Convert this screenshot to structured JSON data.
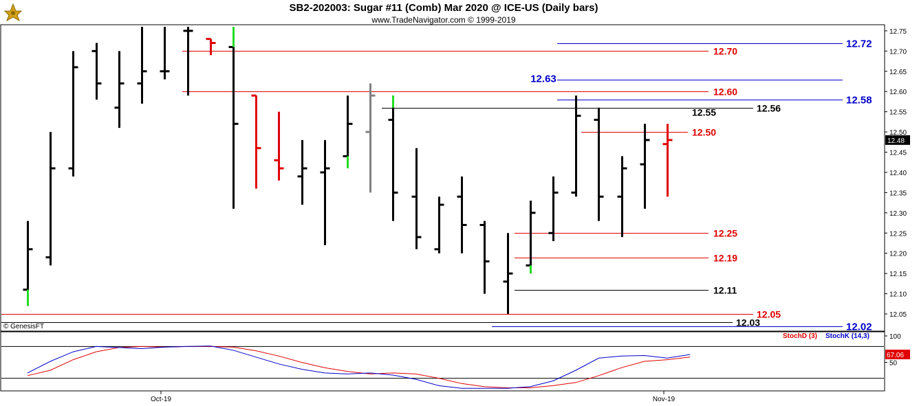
{
  "header": {
    "title": "SB2-202003:  Sugar #11 (Comb) Mar 2020 @ ICE-US  (Daily bars)",
    "subtitle": "www.TradeNavigator.com © 1999-2019"
  },
  "copyright_label": "© GenesisFT",
  "chart_data": [
    {
      "type": "ohlc",
      "ylim": [
        12.02,
        12.76
      ],
      "y_ticks": [
        "12.75",
        "12.70",
        "12.65",
        "12.60",
        "12.55",
        "12.50",
        "12.45",
        "12.40",
        "12.35",
        "12.30",
        "12.25",
        "12.20",
        "12.15",
        "12.10",
        "12.05"
      ],
      "last_price_label": "12.48",
      "x_labels": [
        "Oct-19",
        "Nov-19"
      ],
      "bars": [
        {
          "h": 12.28,
          "l": 12.07,
          "o": 12.11,
          "c": 12.21,
          "color": "#000",
          "green_tail": [
            12.07,
            12.11
          ]
        },
        {
          "h": 12.5,
          "l": 12.17,
          "o": 12.19,
          "c": 12.41,
          "color": "#000"
        },
        {
          "h": 12.7,
          "l": 12.39,
          "o": 12.41,
          "c": 12.66,
          "color": "#000"
        },
        {
          "h": 12.72,
          "l": 12.58,
          "o": 12.7,
          "c": 12.62,
          "color": "#000"
        },
        {
          "h": 12.7,
          "l": 12.51,
          "o": 12.56,
          "c": 12.62,
          "color": "#000"
        },
        {
          "h": 12.76,
          "l": 12.57,
          "o": 12.62,
          "c": 12.65,
          "color": "#000"
        },
        {
          "h": 12.76,
          "l": 12.63,
          "o": 12.65,
          "c": 12.65,
          "color": "#000"
        },
        {
          "h": 12.76,
          "l": 12.59,
          "o": 12.75,
          "c": 12.75,
          "color": "#000"
        },
        {
          "h": 12.73,
          "l": 12.69,
          "o": 12.73,
          "c": 12.72,
          "color": "#e00000"
        },
        {
          "h": 12.76,
          "l": 12.31,
          "o": 12.71,
          "c": 12.52,
          "color": "#000",
          "green_tail": [
            12.71,
            12.76
          ]
        },
        {
          "h": 12.59,
          "l": 12.36,
          "o": 12.59,
          "c": 12.46,
          "color": "#e00000"
        },
        {
          "h": 12.55,
          "l": 12.38,
          "o": 12.43,
          "c": 12.41,
          "color": "#e00000"
        },
        {
          "h": 12.48,
          "l": 12.32,
          "o": 12.39,
          "c": 12.41,
          "color": "#000"
        },
        {
          "h": 12.48,
          "l": 12.22,
          "o": 12.4,
          "c": 12.41,
          "color": "#000"
        },
        {
          "h": 12.59,
          "l": 12.41,
          "o": 12.44,
          "c": 12.52,
          "color": "#000",
          "green_tail": [
            12.41,
            12.44
          ]
        },
        {
          "h": 12.62,
          "l": 12.35,
          "o": 12.5,
          "c": 12.59,
          "color": "#808080"
        },
        {
          "h": 12.59,
          "l": 12.28,
          "o": 12.53,
          "c": 12.35,
          "color": "#000",
          "green_tail": [
            12.56,
            12.59
          ]
        },
        {
          "h": 12.46,
          "l": 12.21,
          "o": 12.34,
          "c": 12.24,
          "color": "#000"
        },
        {
          "h": 12.34,
          "l": 12.2,
          "o": 12.21,
          "c": 12.32,
          "color": "#000"
        },
        {
          "h": 12.39,
          "l": 12.2,
          "o": 12.34,
          "c": 12.27,
          "color": "#000"
        },
        {
          "h": 12.28,
          "l": 12.1,
          "o": 12.27,
          "c": 12.18,
          "color": "#000"
        },
        {
          "h": 12.25,
          "l": 12.05,
          "o": 12.13,
          "c": 12.15,
          "color": "#000"
        },
        {
          "h": 12.33,
          "l": 12.15,
          "o": 12.17,
          "c": 12.3,
          "color": "#000",
          "green_tail": [
            12.15,
            12.17
          ]
        },
        {
          "h": 12.39,
          "l": 12.23,
          "o": 12.25,
          "c": 12.35,
          "color": "#000"
        },
        {
          "h": 12.59,
          "l": 12.34,
          "o": 12.35,
          "c": 12.54,
          "color": "#000"
        },
        {
          "h": 12.56,
          "l": 12.28,
          "o": 12.53,
          "c": 12.34,
          "color": "#000"
        },
        {
          "h": 12.44,
          "l": 12.24,
          "o": 12.34,
          "c": 12.41,
          "color": "#000"
        },
        {
          "h": 12.52,
          "l": 12.31,
          "o": 12.42,
          "c": 12.48,
          "color": "#000"
        },
        {
          "h": 12.52,
          "l": 12.34,
          "o": 12.47,
          "c": 12.48,
          "color": "#e00000"
        }
      ],
      "levels": [
        {
          "value": 12.72,
          "label": "12.72",
          "color": "#0000cc",
          "label_side": "right"
        },
        {
          "value": 12.7,
          "label": "12.70",
          "color": "#e00000",
          "label_side": "inline"
        },
        {
          "value": 12.63,
          "label": "12.63",
          "color": "#0000cc",
          "label_side": "left"
        },
        {
          "value": 12.6,
          "label": "12.60",
          "color": "#e00000",
          "label_side": "inline"
        },
        {
          "value": 12.58,
          "label": "12.58",
          "color": "#0000cc",
          "label_side": "right"
        },
        {
          "value": 12.56,
          "label": "12.56",
          "color": "#000000",
          "label_side": "inline"
        },
        {
          "value": 12.55,
          "label": "12.55",
          "color": "#000000",
          "label_side": "inline"
        },
        {
          "value": 12.5,
          "label": "12.50",
          "color": "#e00000",
          "label_side": "inline"
        },
        {
          "value": 12.25,
          "label": "12.25",
          "color": "#e00000",
          "label_side": "inline"
        },
        {
          "value": 12.19,
          "label": "12.19",
          "color": "#e00000",
          "label_side": "inline"
        },
        {
          "value": 12.11,
          "label": "12.11",
          "color": "#000000",
          "label_side": "inline"
        },
        {
          "value": 12.05,
          "label": "12.05",
          "color": "#e00000",
          "label_side": "inline"
        },
        {
          "value": 12.03,
          "label": "12.03",
          "color": "#000000",
          "label_side": "inline"
        },
        {
          "value": 12.02,
          "label": "12.02",
          "color": "#0000cc",
          "label_side": "right"
        }
      ]
    },
    {
      "type": "line",
      "ylim": [
        0,
        100
      ],
      "y_ticks": [
        "100",
        "50"
      ],
      "legend": [
        "StochD (3)",
        "StochK (14,3)"
      ],
      "last_value_label": "67.06",
      "series": [
        {
          "name": "StochD (3)",
          "color": "#e00000",
          "values": [
            25,
            35,
            55,
            70,
            78,
            80,
            79,
            80,
            80,
            79,
            72,
            62,
            50,
            40,
            33,
            28,
            30,
            28,
            20,
            10,
            4,
            2,
            2,
            6,
            12,
            25,
            40,
            52,
            55,
            60
          ]
        },
        {
          "name": "StochK (14,3)",
          "color": "#0000cc",
          "values": [
            30,
            52,
            70,
            80,
            78,
            76,
            79,
            80,
            81,
            73,
            60,
            47,
            37,
            30,
            28,
            30,
            26,
            18,
            6,
            1,
            1,
            1,
            4,
            15,
            35,
            58,
            62,
            63,
            58,
            65
          ]
        }
      ]
    }
  ]
}
